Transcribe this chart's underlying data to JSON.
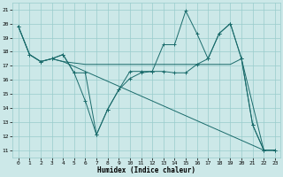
{
  "xlabel": "Humidex (Indice chaleur)",
  "xlim": [
    -0.5,
    23.5
  ],
  "ylim": [
    10.5,
    21.5
  ],
  "yticks": [
    11,
    12,
    13,
    14,
    15,
    16,
    17,
    18,
    19,
    20,
    21
  ],
  "xticks": [
    0,
    1,
    2,
    3,
    4,
    5,
    6,
    7,
    8,
    9,
    10,
    11,
    12,
    13,
    14,
    15,
    16,
    17,
    18,
    19,
    20,
    21,
    22,
    23
  ],
  "bg_color": "#cce8e8",
  "grid_color": "#99cccc",
  "line_color": "#1a6b6b",
  "lines": [
    {
      "x": [
        0,
        1,
        2,
        3,
        4,
        5,
        6,
        7,
        8,
        9,
        10,
        11,
        12,
        13,
        14,
        15,
        16,
        17,
        18,
        19,
        20,
        21,
        22,
        23
      ],
      "y": [
        19.8,
        17.8,
        17.3,
        17.5,
        17.8,
        16.5,
        14.5,
        12.1,
        13.9,
        15.3,
        16.1,
        16.5,
        16.6,
        18.5,
        18.5,
        20.9,
        19.3,
        17.5,
        19.3,
        20.0,
        17.5,
        12.8,
        11.0,
        11.0
      ],
      "marker": true
    },
    {
      "x": [
        3,
        4,
        5,
        6,
        7,
        8,
        9,
        10,
        11,
        12,
        13,
        14,
        15,
        16,
        17,
        18,
        19,
        20,
        22,
        23
      ],
      "y": [
        17.5,
        17.3,
        17.2,
        17.1,
        17.1,
        17.1,
        17.1,
        17.1,
        17.1,
        17.1,
        17.1,
        17.1,
        17.1,
        17.1,
        17.1,
        17.1,
        17.1,
        17.5,
        11.0,
        11.0
      ],
      "marker": false
    },
    {
      "x": [
        0,
        1,
        2,
        3,
        4,
        22,
        23
      ],
      "y": [
        19.8,
        17.8,
        17.3,
        17.5,
        17.3,
        11.0,
        11.0
      ],
      "marker": false
    },
    {
      "x": [
        0,
        1,
        2,
        3,
        4,
        5,
        6,
        7,
        8,
        9,
        10,
        11,
        12,
        13,
        14,
        15,
        16,
        17,
        18,
        19,
        20,
        21,
        22,
        23
      ],
      "y": [
        19.8,
        17.8,
        17.3,
        17.5,
        17.8,
        16.5,
        16.5,
        12.1,
        13.9,
        15.3,
        16.6,
        16.6,
        16.6,
        16.6,
        16.5,
        16.5,
        17.1,
        17.5,
        19.3,
        20.0,
        17.5,
        12.8,
        11.0,
        11.0
      ],
      "marker": true
    }
  ]
}
